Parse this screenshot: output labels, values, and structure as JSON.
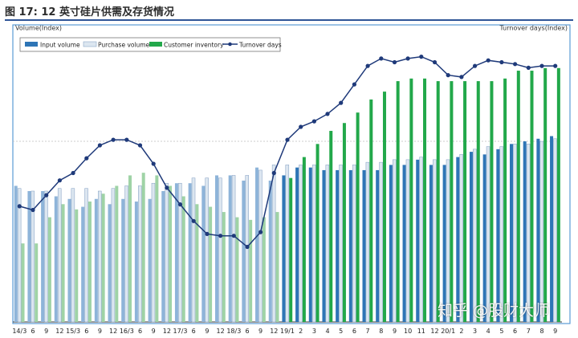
{
  "figure_title": "图 17:  12 英寸硅片供需及存货情况",
  "watermark": "知乎 @股财大师",
  "colors": {
    "input": "#2e75b6",
    "purchase": "#dce6f0",
    "inventory": "#22a84a",
    "turnover": "#1f3a7a",
    "border": "#5b9bd5",
    "title_rule": "#2f5597"
  },
  "chart_data": {
    "type": "bar",
    "title": "",
    "ylabel_left": "Volume(Index)",
    "ylabel_right": "Turnover days(Index)",
    "legend": [
      "Input volume",
      "Purchase volume",
      "Customer inventory",
      "Turnover days"
    ],
    "legend_position": "top-left",
    "categories": [
      "14/3",
      "6",
      "9",
      "12",
      "15/3",
      "6",
      "9",
      "12",
      "16/3",
      "6",
      "9",
      "12",
      "17/3",
      "6",
      "9",
      "12",
      "18/3",
      "6",
      "9",
      "12",
      "19/1",
      "2",
      "3",
      "4",
      "5",
      "6",
      "7",
      "8",
      "9",
      "10",
      "11",
      "12",
      "20/1",
      "2",
      "3",
      "4",
      "5",
      "6",
      "7",
      "8",
      "9"
    ],
    "series": [
      {
        "name": "Input volume",
        "kind": "bar",
        "values": [
          52,
          50,
          50,
          48,
          47,
          44,
          47,
          45,
          47,
          46,
          47,
          50,
          53,
          53,
          52,
          56,
          56,
          54,
          59,
          54,
          56,
          59,
          59,
          58,
          58,
          58,
          58,
          58,
          60,
          60,
          62,
          60,
          60,
          63,
          65,
          64,
          66,
          68,
          69,
          70,
          71
        ]
      },
      {
        "name": "Purchase volume",
        "kind": "bar",
        "values": [
          51,
          50,
          50,
          51,
          51,
          51,
          50,
          51,
          52,
          52,
          53,
          53,
          53,
          55,
          55,
          55,
          56,
          56,
          58,
          60,
          60,
          60,
          60,
          60,
          60,
          60,
          61,
          61,
          62,
          62,
          63,
          62,
          62,
          64,
          66,
          67,
          67,
          68,
          68,
          69,
          70
        ]
      },
      {
        "name": "Customer inventory",
        "kind": "bar",
        "values": [
          30,
          30,
          40,
          45,
          43,
          46,
          49,
          52,
          56,
          57,
          56,
          52,
          48,
          45,
          44,
          42,
          40,
          39,
          40,
          42,
          55,
          63,
          68,
          73,
          76,
          80,
          85,
          88,
          92,
          93,
          93,
          92,
          92,
          92,
          92,
          92,
          93,
          96,
          96,
          97,
          97
        ]
      },
      {
        "name": "Turnover days",
        "kind": "line",
        "axis": "right",
        "values": [
          62,
          60,
          68,
          76,
          80,
          88,
          95,
          98,
          98,
          95,
          85,
          72,
          63,
          54,
          47,
          46,
          46,
          40,
          48,
          80,
          98,
          105,
          108,
          112,
          118,
          128,
          138,
          142,
          140,
          142,
          143,
          140,
          133,
          132,
          138,
          141,
          140,
          139,
          137,
          138,
          138
        ]
      }
    ],
    "grid": false
  }
}
